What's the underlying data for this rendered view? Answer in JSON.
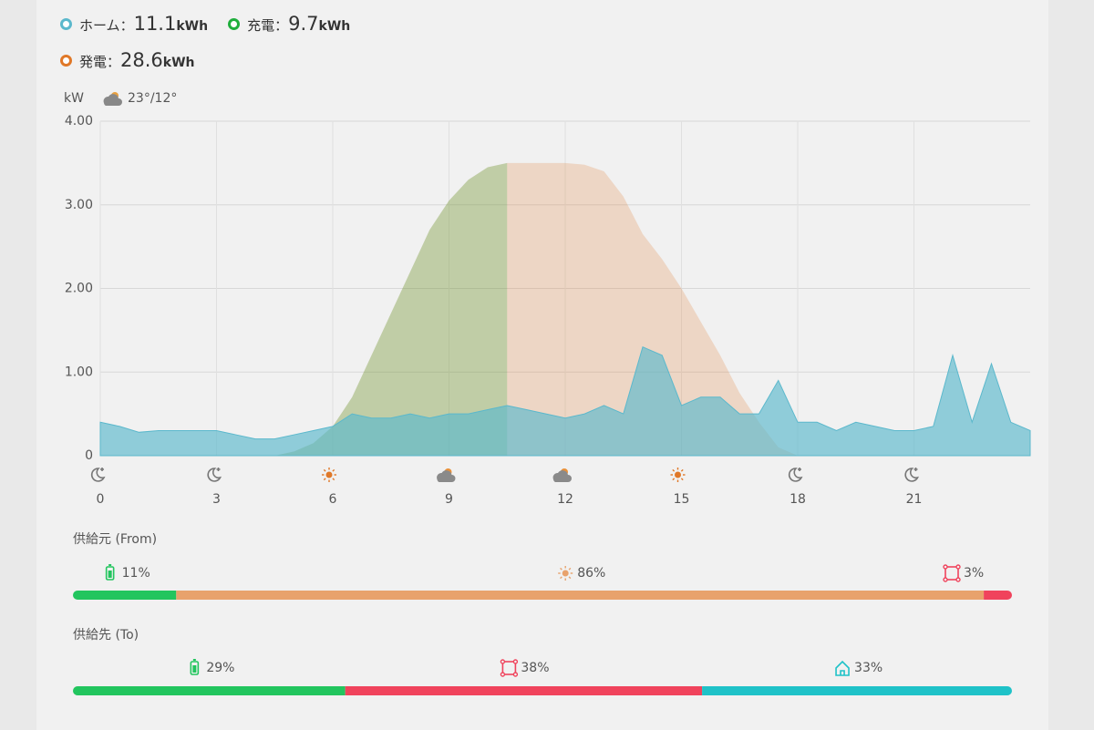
{
  "separator": "：",
  "chart_data": {
    "type": "area",
    "y_label": "kW",
    "weather": "23°/12°",
    "x": [
      0,
      0.5,
      1,
      1.5,
      2,
      2.5,
      3,
      3.5,
      4,
      4.5,
      5,
      5.5,
      6,
      6.5,
      7,
      7.5,
      8,
      8.5,
      9,
      9.5,
      10,
      10.5,
      11,
      11.5,
      12,
      12.5,
      13,
      13.5,
      14,
      14.5,
      15,
      15.5,
      16,
      16.5,
      17,
      17.5,
      18,
      18.5,
      19,
      19.5,
      20,
      20.5,
      21,
      21.5,
      22,
      22.5,
      23,
      23.5,
      24
    ],
    "series": [
      {
        "name": "ホーム",
        "total": 11.1,
        "unit": "kWh",
        "color": "#5bb8cc",
        "values": [
          0.4,
          0.35,
          0.28,
          0.3,
          0.3,
          0.3,
          0.3,
          0.25,
          0.2,
          0.2,
          0.25,
          0.3,
          0.35,
          0.5,
          0.45,
          0.45,
          0.5,
          0.45,
          0.5,
          0.5,
          0.55,
          0.6,
          0.55,
          0.5,
          0.45,
          0.5,
          0.6,
          0.5,
          1.3,
          1.2,
          0.6,
          0.7,
          0.7,
          0.5,
          0.5,
          0.9,
          0.4,
          0.4,
          0.3,
          0.4,
          0.35,
          0.3,
          0.3,
          0.35,
          1.2,
          0.4,
          1.1,
          0.4,
          0.3
        ]
      },
      {
        "name": "充電",
        "total": 9.7,
        "unit": "kWh",
        "color": "#1fae3c",
        "values": [
          0,
          0,
          0,
          0,
          0,
          0,
          0,
          0,
          0,
          0,
          0.05,
          0.15,
          0.35,
          0.7,
          1.2,
          1.7,
          2.2,
          2.7,
          3.05,
          3.3,
          3.45,
          3.5,
          null,
          null,
          null,
          null,
          null,
          null,
          null,
          null,
          null,
          null,
          null,
          null,
          null,
          null,
          null,
          null,
          null,
          null,
          null,
          null,
          null,
          null,
          null,
          null,
          null,
          null,
          null
        ]
      },
      {
        "name": "発電",
        "total": 28.6,
        "unit": "kWh",
        "color": "#e07828",
        "values": [
          0,
          0,
          0,
          0,
          0,
          0,
          0,
          0,
          0,
          0,
          0.05,
          0.15,
          0.35,
          0.7,
          1.2,
          1.7,
          2.2,
          2.7,
          3.05,
          3.3,
          3.45,
          3.5,
          3.5,
          3.5,
          3.5,
          3.48,
          3.4,
          3.1,
          2.65,
          2.35,
          2.0,
          1.6,
          1.2,
          0.75,
          0.4,
          0.1,
          0,
          0,
          0,
          0,
          0,
          0,
          0,
          0,
          0,
          0,
          0,
          0,
          0
        ]
      }
    ],
    "xlim": [
      0,
      24
    ],
    "xticks": [
      0,
      3,
      6,
      9,
      12,
      15,
      18,
      21
    ],
    "xtick_icons": [
      "moon",
      "moon",
      "sun",
      "cloud-sun",
      "cloud-sun",
      "sun",
      "moon",
      "moon"
    ],
    "ylim": [
      0,
      4
    ],
    "yticks": [
      0,
      {
        "value": 1,
        "label": "1.00"
      },
      {
        "value": 2,
        "label": "2.00"
      },
      {
        "value": 3,
        "label": "3.00"
      },
      {
        "value": 4,
        "label": "4.00"
      }
    ],
    "grid": true
  },
  "supply_from": {
    "title": "供給元 (From)",
    "values": [
      11,
      86,
      3
    ],
    "value_labels": [
      "11%",
      "86%",
      "3%"
    ],
    "colors": [
      "#22c55e",
      "#e8a26c",
      "#f0435c"
    ],
    "icons": [
      "battery",
      "sun",
      "grid"
    ]
  },
  "supply_to": {
    "title": "供給先 (To)",
    "values": [
      29,
      38,
      33
    ],
    "value_labels": [
      "29%",
      "38%",
      "33%"
    ],
    "colors": [
      "#22c55e",
      "#f0435c",
      "#1fc2c8"
    ],
    "icons": [
      "battery",
      "grid",
      "home"
    ]
  }
}
